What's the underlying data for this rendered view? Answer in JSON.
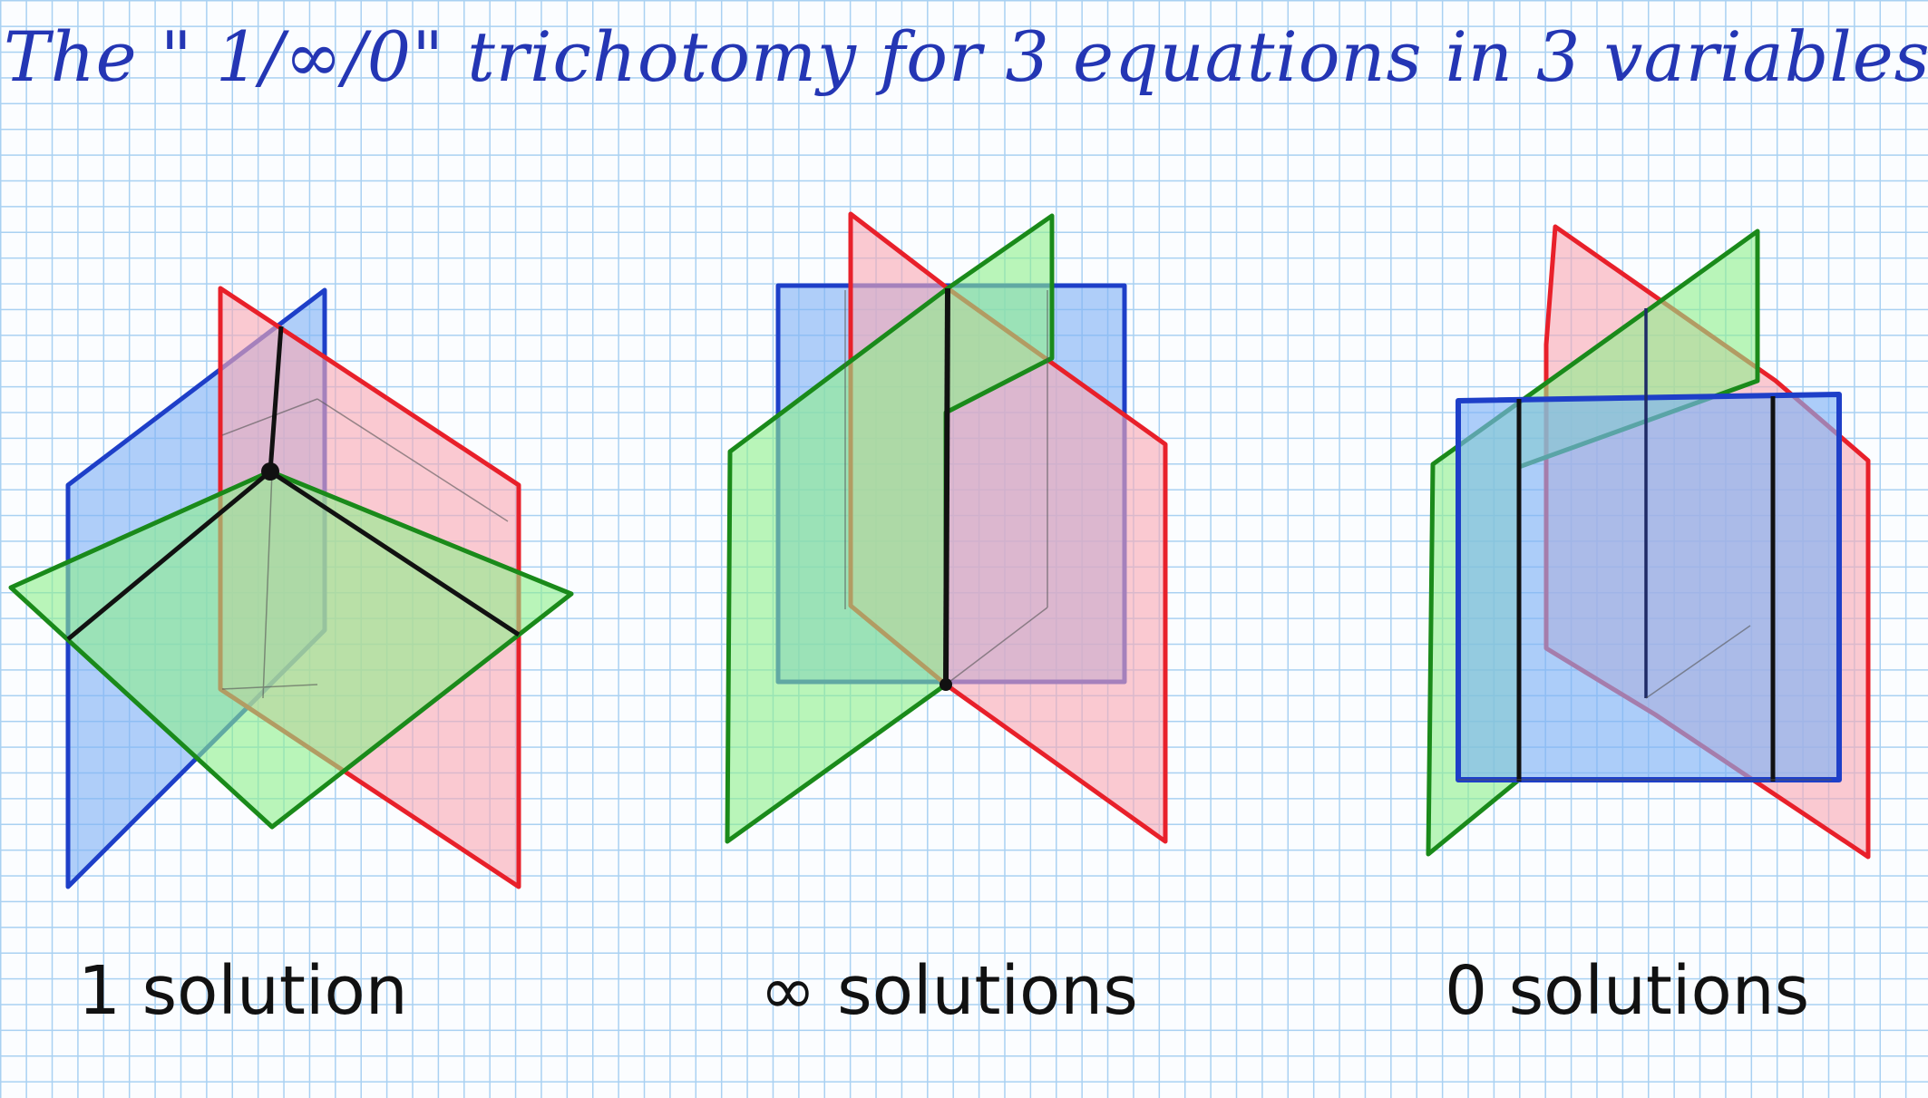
{
  "title": "The \" 1/∞/0\" trichotomy for 3 equations in 3 variables:",
  "diagrams": [
    {
      "caption": "1 solution"
    },
    {
      "caption": "∞ solutions"
    },
    {
      "caption": "0 solutions"
    }
  ],
  "colors": {
    "red_fill": "#f8a9b4",
    "red_edge": "#e8202a",
    "green_fill": "#8ef08a",
    "green_edge": "#1a8a1a",
    "blue_fill": "#7fb2f5",
    "blue_edge": "#1e3fc8",
    "intersection": "#111111"
  }
}
